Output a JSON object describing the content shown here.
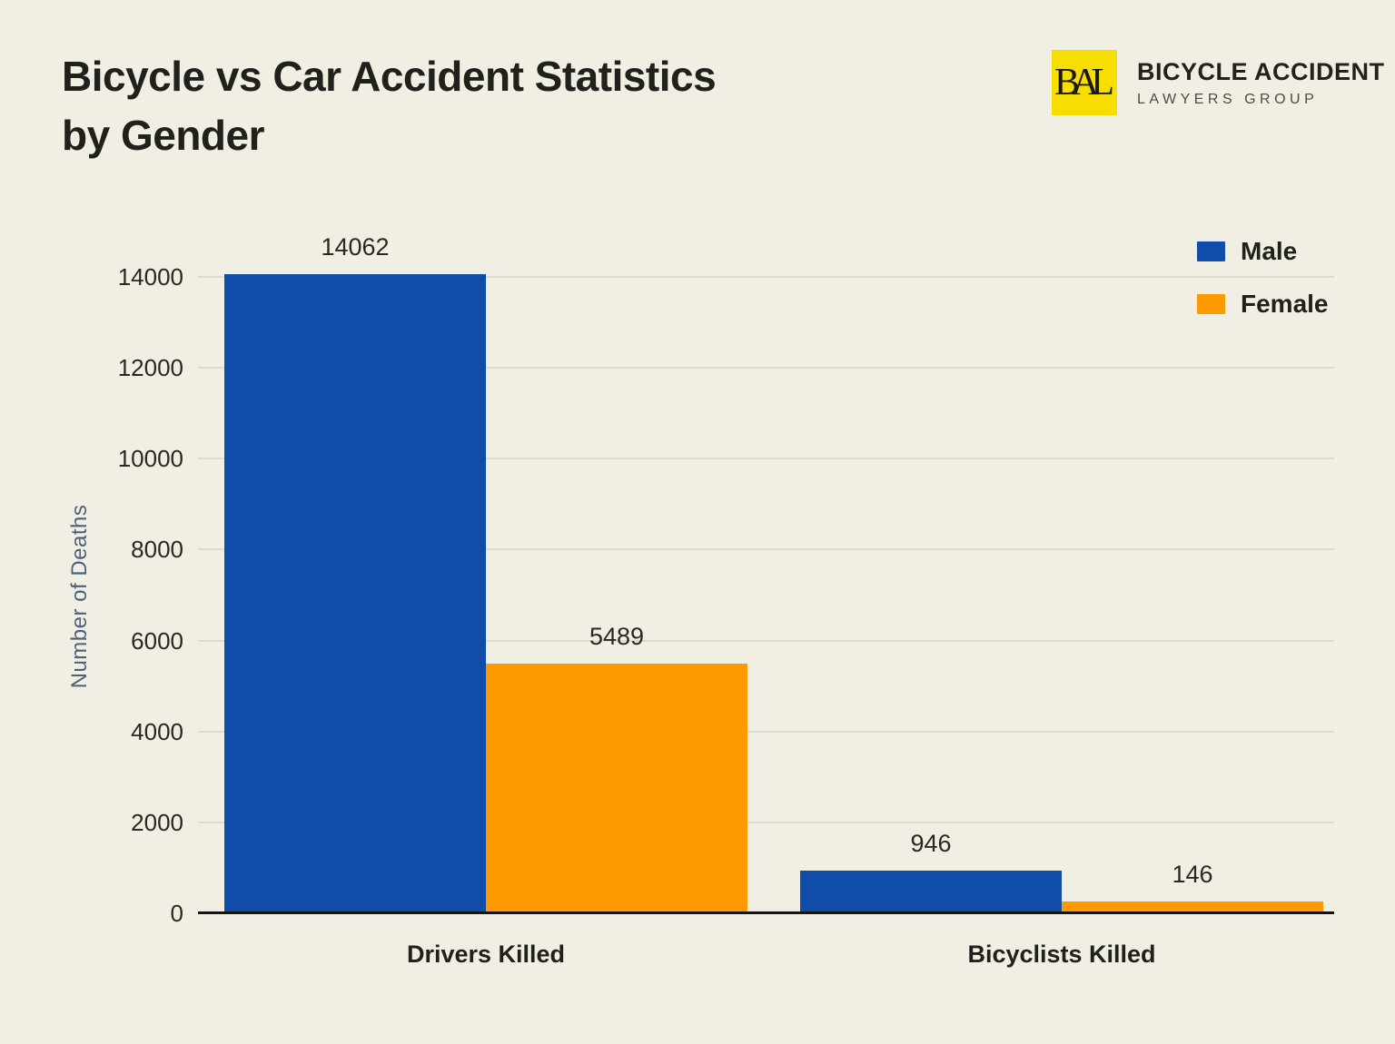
{
  "page": {
    "background": "#F1EFE3"
  },
  "header": {
    "title_line1": "Bicycle vs Car Accident Statistics",
    "title_line2": "by Gender",
    "logo": {
      "monogram": "BAL",
      "name": "BICYCLE ACCIDENT",
      "subtitle": "LAWYERS GROUP"
    }
  },
  "chart_data": {
    "type": "bar",
    "title": "Bicycle vs Car Accident Statistics by Gender",
    "categories": [
      "Drivers Killed",
      "Bicyclists Killed"
    ],
    "series": [
      {
        "name": "Male",
        "color": "#0F4DA8",
        "values": [
          14062,
          946
        ]
      },
      {
        "name": "Female",
        "color": "#FC9A00",
        "values": [
          5489,
          146
        ]
      }
    ],
    "xlabel": "",
    "ylabel": "Number of Deaths",
    "ylim": [
      0,
      14000
    ],
    "yticks": [
      0,
      2000,
      4000,
      6000,
      8000,
      10000,
      12000,
      14000
    ],
    "grid": true,
    "legend_position": "top-right",
    "value_labels_shown": true
  },
  "colors": {
    "background": "#F1EFE3",
    "grid": "#DDDBD0",
    "axis": "#15140F",
    "title": "#21201D",
    "tick_label": "#2A2823",
    "ylabel": "#4A6378",
    "logo_yellow": "#F6DE00",
    "logo_text": "#23211E",
    "logo_subtext": "#4D4B46"
  }
}
